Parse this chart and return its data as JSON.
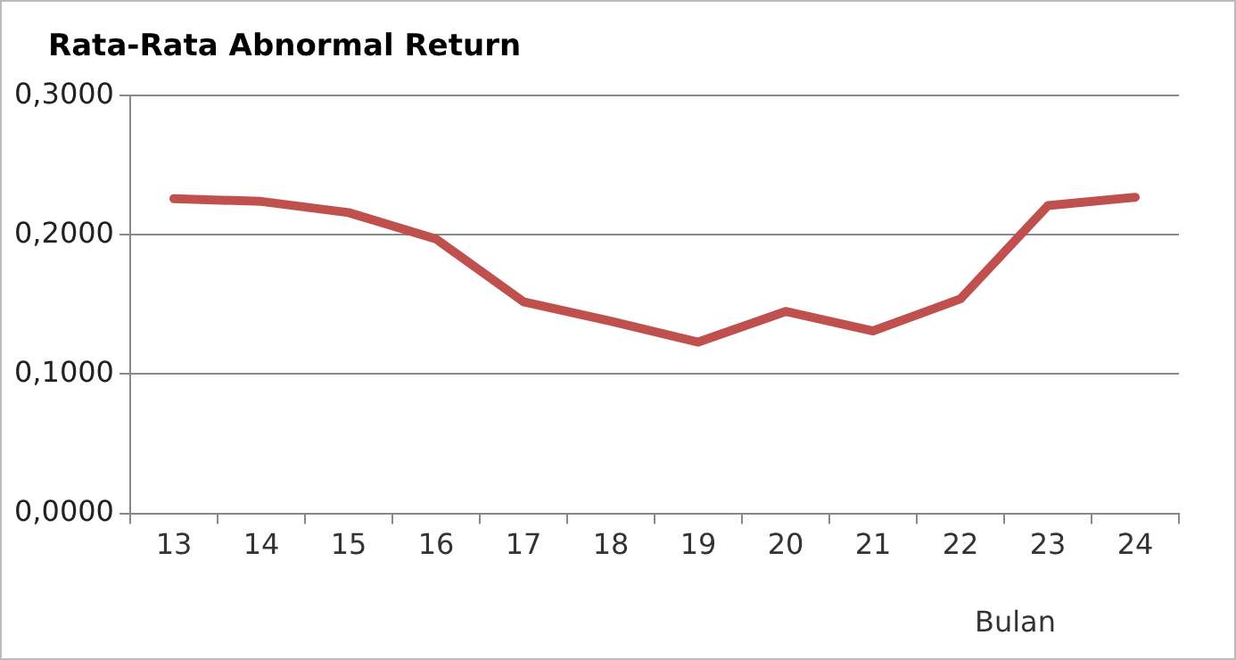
{
  "chart_data": {
    "type": "line",
    "title": "Rata-Rata Abnormal Return",
    "xlabel": "Bulan",
    "categories": [
      "13",
      "14",
      "15",
      "16",
      "17",
      "18",
      "19",
      "20",
      "21",
      "22",
      "23",
      "24"
    ],
    "series": [
      {
        "color": "#c0504d",
        "values": [
          0.226,
          0.224,
          0.216,
          0.197,
          0.152,
          0.138,
          0.123,
          0.145,
          0.131,
          0.154,
          0.221,
          0.227
        ]
      }
    ],
    "ylim": [
      0,
      0.3
    ],
    "yticks": [
      {
        "value": 0,
        "label": "0,0000"
      },
      {
        "value": 0.1,
        "label": "0,1000"
      },
      {
        "value": 0.2,
        "label": "0,2000"
      },
      {
        "value": 0.3,
        "label": "0,3000"
      }
    ],
    "grid": "y",
    "legend": false,
    "marker": "none",
    "line_style": "solid"
  }
}
